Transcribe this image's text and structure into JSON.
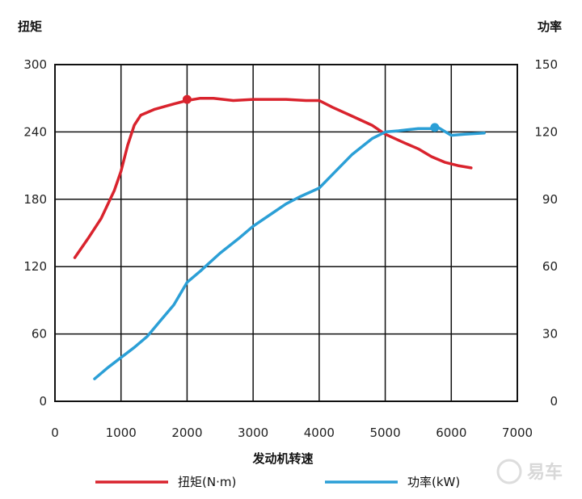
{
  "chart_data": {
    "type": "line",
    "xlabel": "发动机转速",
    "ylabel_left": "扭矩",
    "ylabel_right": "功率",
    "xlim": [
      0,
      7000
    ],
    "ylim_left": [
      0,
      300
    ],
    "ylim_right": [
      0,
      150
    ],
    "x_ticks": [
      "0",
      "1000",
      "2000",
      "3000",
      "4000",
      "5000",
      "6000",
      "7000"
    ],
    "y_left_ticks": [
      "0",
      "60",
      "120",
      "180",
      "240",
      "300"
    ],
    "y_right_ticks": [
      "0",
      "30",
      "60",
      "90",
      "120",
      "150"
    ],
    "grid": true,
    "legend_position": "bottom",
    "series": [
      {
        "name": "扭矩(N·m)",
        "axis": "left",
        "color": "#d9232d",
        "x": [
          300,
          500,
          700,
          900,
          1000,
          1100,
          1200,
          1300,
          1500,
          1800,
          2000,
          2200,
          2400,
          2700,
          3000,
          3500,
          3800,
          4000,
          4200,
          4500,
          4800,
          5000,
          5300,
          5500,
          5700,
          5900,
          6100,
          6300
        ],
        "y": [
          128,
          145,
          163,
          188,
          205,
          228,
          246,
          255,
          260,
          265,
          268,
          270,
          270,
          268,
          269,
          269,
          268,
          268,
          262,
          254,
          246,
          238,
          230,
          225,
          218,
          213,
          210,
          208
        ],
        "marker": {
          "x": 2000,
          "y": 269
        }
      },
      {
        "name": "功率(kW)",
        "axis": "right",
        "color": "#2b9fd6",
        "x": [
          600,
          800,
          1000,
          1200,
          1400,
          1600,
          1800,
          2000,
          2200,
          2500,
          2800,
          3000,
          3300,
          3500,
          3700,
          4000,
          4200,
          4500,
          4800,
          5000,
          5200,
          5500,
          5700,
          5800,
          6000,
          6200,
          6500
        ],
        "y": [
          10,
          15,
          19.5,
          24,
          29,
          36,
          43,
          53,
          58,
          66,
          73,
          78,
          84,
          88,
          91,
          95,
          101,
          110,
          117,
          120,
          120.5,
          121.5,
          121.5,
          122,
          118.5,
          119,
          119.5
        ],
        "marker": {
          "x": 5750,
          "y": 122
        }
      }
    ]
  },
  "watermark": "易车"
}
